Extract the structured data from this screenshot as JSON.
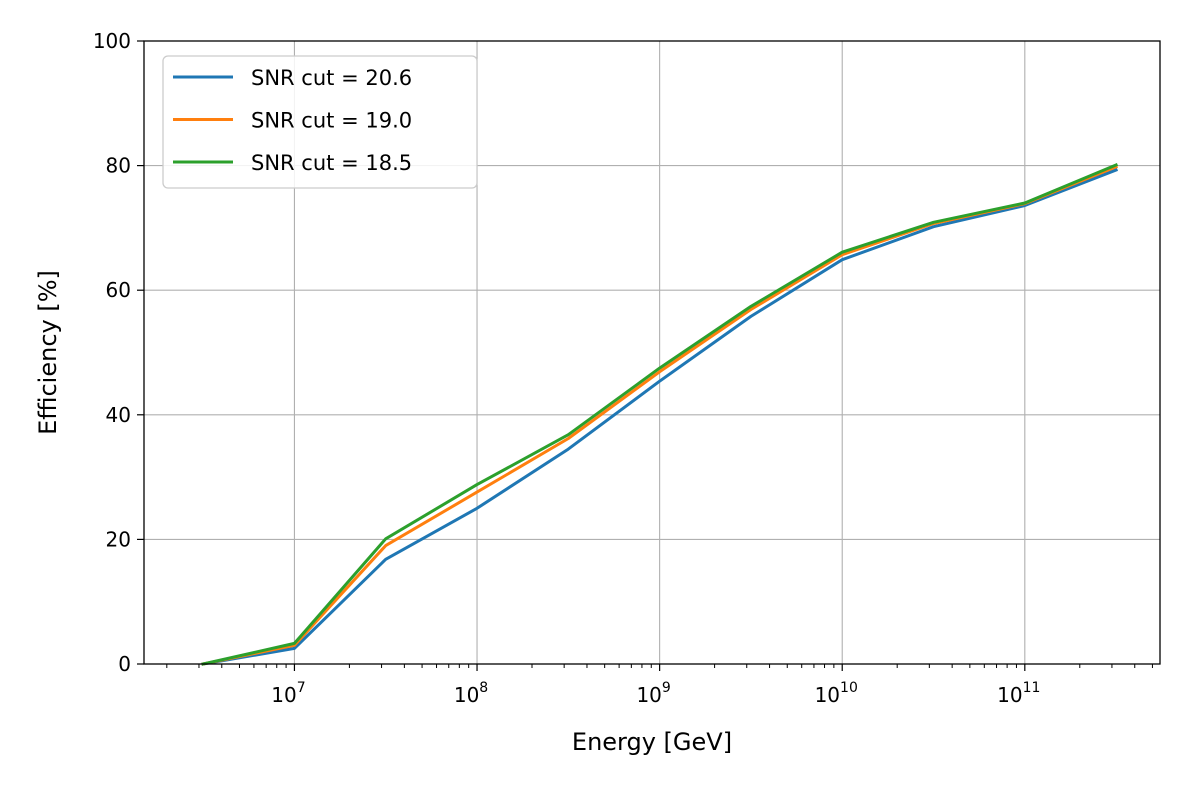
{
  "chart_data": {
    "type": "line",
    "title": "",
    "xlabel": "Energy [GeV]",
    "ylabel": "Efficiency [%]",
    "x_scale": "log",
    "xlim": [
      1500000.0,
      550000000000.0
    ],
    "ylim": [
      0,
      100
    ],
    "grid": true,
    "legend_position": "top-left",
    "x_ticks": [
      {
        "value": 10000000.0,
        "base": "10",
        "exp": "7"
      },
      {
        "value": 100000000.0,
        "base": "10",
        "exp": "8"
      },
      {
        "value": 1000000000.0,
        "base": "10",
        "exp": "9"
      },
      {
        "value": 10000000000.0,
        "base": "10",
        "exp": "10"
      },
      {
        "value": 100000000000.0,
        "base": "10",
        "exp": "11"
      }
    ],
    "y_ticks": [
      {
        "value": 0,
        "label": "0"
      },
      {
        "value": 20,
        "label": "20"
      },
      {
        "value": 40,
        "label": "40"
      },
      {
        "value": 60,
        "label": "60"
      },
      {
        "value": 80,
        "label": "80"
      },
      {
        "value": 100,
        "label": "100"
      }
    ],
    "x": [
      3160000.0,
      10000000.0,
      31600000.0,
      100000000.0,
      316000000.0,
      1000000000.0,
      3160000000.0,
      10000000000.0,
      31600000000.0,
      100000000000.0,
      316000000000.0
    ],
    "series": [
      {
        "name": "SNR cut = 20.6",
        "color": "#1f77b4",
        "values": [
          0,
          2.5,
          16.8,
          25.0,
          34.5,
          45.4,
          55.8,
          64.9,
          70.2,
          73.6,
          79.3
        ]
      },
      {
        "name": "SNR cut = 19.0",
        "color": "#ff7f0e",
        "values": [
          0,
          3.0,
          19.0,
          27.6,
          36.2,
          46.9,
          56.9,
          65.7,
          70.7,
          73.9,
          79.8
        ]
      },
      {
        "name": "SNR cut = 18.5",
        "color": "#2ca02c",
        "values": [
          0,
          3.3,
          20.1,
          28.8,
          36.8,
          47.5,
          57.4,
          66.1,
          70.9,
          74.0,
          80.1
        ]
      }
    ]
  }
}
